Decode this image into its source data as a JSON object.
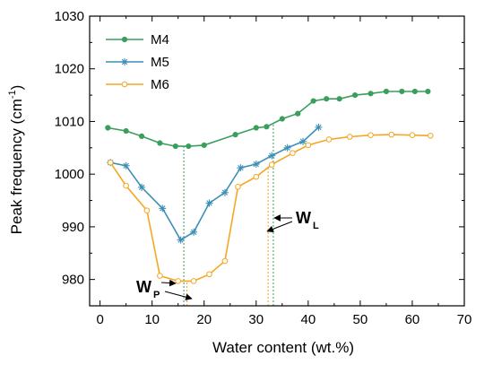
{
  "chart_data": {
    "type": "line",
    "xlabel": "Water content (wt.%)",
    "ylabel": "Peak frequency (cm",
    "ylabel_sup": "-1",
    "ylabel_close": ")",
    "xlim": [
      -2,
      70
    ],
    "ylim": [
      975,
      1030
    ],
    "xticks": [
      0,
      10,
      20,
      30,
      40,
      50,
      60,
      70
    ],
    "yticks": [
      980,
      990,
      1000,
      1010,
      1020,
      1030
    ],
    "legend_position": "top-left",
    "series": [
      {
        "name": "M4",
        "color": "#3a9e5c",
        "marker": "dot",
        "x": [
          1.5,
          5,
          8,
          11.5,
          14.5,
          17,
          20,
          26,
          30,
          32,
          35,
          38,
          41,
          43.5,
          46,
          49,
          52,
          55,
          58,
          60.5,
          63
        ],
        "y": [
          1008.8,
          1008.2,
          1007.2,
          1005.9,
          1005.3,
          1005.3,
          1005.5,
          1007.5,
          1008.8,
          1009.0,
          1010.5,
          1011.5,
          1013.9,
          1014.3,
          1014.3,
          1015.0,
          1015.3,
          1015.7,
          1015.7,
          1015.7,
          1015.7
        ]
      },
      {
        "name": "M5",
        "color": "#3d8fb5",
        "marker": "star",
        "x": [
          2,
          5,
          8,
          12,
          15.5,
          18,
          21,
          24,
          27,
          30,
          33,
          36,
          39,
          42
        ],
        "y": [
          1002.2,
          1001.6,
          997.5,
          993.5,
          987.5,
          989.0,
          994.5,
          996.5,
          1001.2,
          1001.9,
          1003.5,
          1005.0,
          1006.2,
          1008.9
        ]
      },
      {
        "name": "M6",
        "color": "#f5a623",
        "marker": "circle",
        "x": [
          2,
          5,
          9,
          11.5,
          15,
          18,
          21,
          24,
          26.5,
          30,
          33,
          37,
          40,
          44,
          48,
          52,
          56,
          60,
          63.5
        ],
        "y": [
          1002.2,
          997.8,
          993.1,
          980.7,
          979.7,
          979.7,
          981.0,
          983.5,
          997.6,
          999.5,
          1001.8,
          1004.0,
          1005.5,
          1006.6,
          1007.1,
          1007.4,
          1007.5,
          1007.4,
          1007.3
        ]
      }
    ],
    "reference_lines": [
      {
        "x": 16.1,
        "y_top": 1005.3,
        "color": "#3a9e5c"
      },
      {
        "x": 16.7,
        "y_top": 979.7,
        "color": "#f5a623"
      },
      {
        "x": 33.3,
        "y_top": 1009.5,
        "color": "#3a9e5c"
      },
      {
        "x": 32.3,
        "y_top": 1001.2,
        "color": "#f5a623"
      }
    ],
    "annotations": [
      {
        "label": "W",
        "sub": "P"
      },
      {
        "label": "W",
        "sub": "L"
      }
    ]
  }
}
